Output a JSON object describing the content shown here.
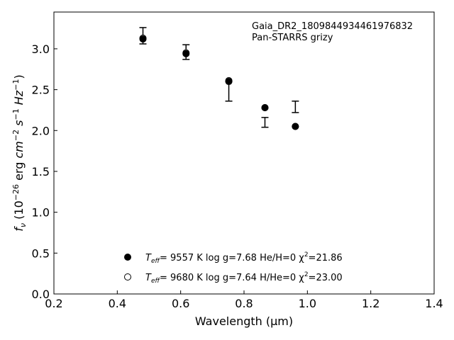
{
  "chart_data": {
    "type": "scatter",
    "xlabel": "Wavelength (μm)",
    "ylabel": "f_ν (10^-26 erg cm^-2 s^-1 Hz^-1)",
    "xlim": [
      0.2,
      1.4
    ],
    "ylim": [
      0.0,
      3.45
    ],
    "x_ticks": [
      "0.2",
      "0.4",
      "0.6",
      "0.8",
      "1.0",
      "1.2",
      "1.4"
    ],
    "y_ticks": [
      "0.0",
      "0.5",
      "1.0",
      "1.5",
      "2.0",
      "2.5",
      "3.0"
    ],
    "grid": false,
    "annotations": [
      "Gaia_DR2_1809844934461976832",
      "Pan-STARRS grizy"
    ],
    "observed": {
      "x": [
        0.481,
        0.617,
        0.752,
        0.866,
        0.962
      ],
      "y": [
        3.16,
        2.96,
        2.48,
        2.1,
        2.29
      ],
      "yerr": [
        0.1,
        0.09,
        0.12,
        0.06,
        0.07
      ]
    },
    "series": [
      {
        "marker": "filled",
        "label_parts": [
          "T",
          "eff",
          "=  9557 K  log g=7.68  He/H=0  χ",
          "2",
          "=21.86"
        ],
        "x": [
          0.481,
          0.617,
          0.752,
          0.866,
          0.962
        ],
        "y": [
          3.12,
          2.94,
          2.6,
          2.28,
          2.05
        ]
      },
      {
        "marker": "open",
        "label_parts": [
          "T",
          "eff",
          "=  9680 K  log g=7.64  H/He=0  χ",
          "2",
          "=23.00"
        ],
        "x": [
          0.481,
          0.617,
          0.752,
          0.866,
          0.962
        ],
        "y": [
          3.13,
          2.95,
          2.61,
          2.28,
          2.05
        ]
      }
    ],
    "legend_placement": "lower-center"
  }
}
